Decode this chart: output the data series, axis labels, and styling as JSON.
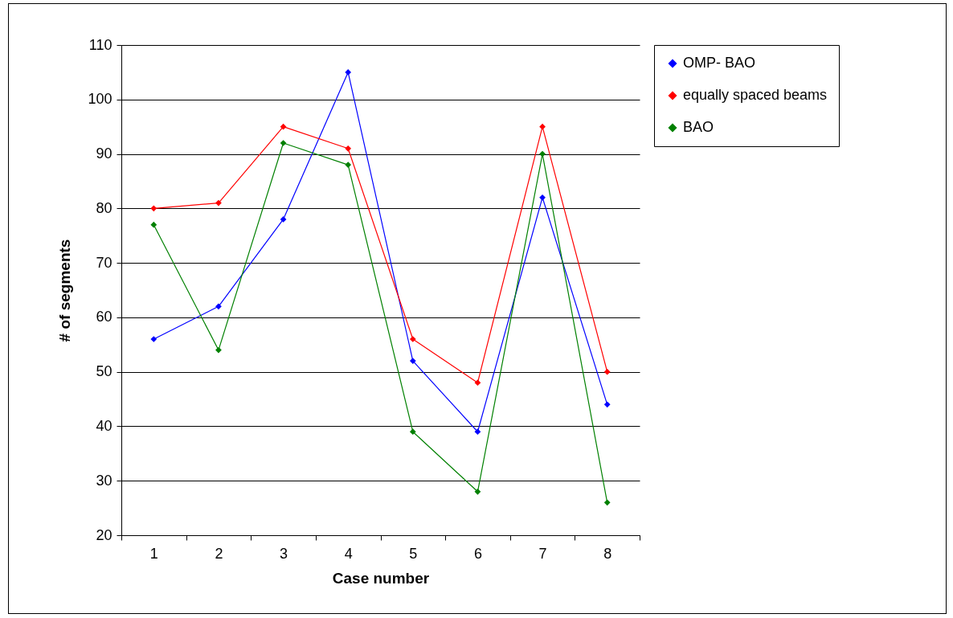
{
  "chart_data": {
    "type": "line",
    "xlabel": "Case number",
    "ylabel": "# of segments",
    "categories": [
      "1",
      "2",
      "3",
      "4",
      "5",
      "6",
      "7",
      "8"
    ],
    "series": [
      {
        "name": "OMP- BAO",
        "color": "#0000ff",
        "values": [
          56,
          62,
          78,
          105,
          52,
          39,
          82,
          44
        ]
      },
      {
        "name": "equally spaced beams",
        "color": "#ff0000",
        "values": [
          80,
          81,
          95,
          91,
          56,
          48,
          95,
          50
        ]
      },
      {
        "name": "BAO",
        "color": "#008000",
        "values": [
          77,
          54,
          92,
          88,
          39,
          28,
          90,
          26
        ]
      }
    ],
    "ylim": [
      20,
      110
    ],
    "yticks": [
      20,
      30,
      40,
      50,
      60,
      70,
      80,
      90,
      100,
      110
    ],
    "grid": "y",
    "legend": "right",
    "marker": "diamond",
    "line_style": "solid"
  }
}
